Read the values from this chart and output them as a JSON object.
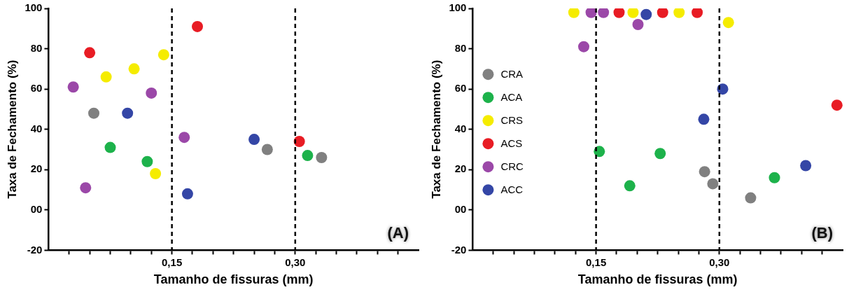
{
  "chart_data": [
    {
      "type": "scatter",
      "xlabel": "Tamanho de fissuras (mm)",
      "ylabel": "Taxa de Fechamento (%)",
      "annotations": [
        "(A)"
      ],
      "xlim": [
        0,
        0.45
      ],
      "ylim": [
        -20,
        100
      ],
      "xticks": [
        {
          "value": 0.025,
          "label": null
        },
        {
          "value": 0.05,
          "label": null
        },
        {
          "value": 0.075,
          "label": null
        },
        {
          "value": 0.1,
          "label": null
        },
        {
          "value": 0.125,
          "label": null
        },
        {
          "value": 0.15,
          "label": "0,15"
        },
        {
          "value": 0.175,
          "label": null
        },
        {
          "value": 0.2,
          "label": null
        },
        {
          "value": 0.225,
          "label": null
        },
        {
          "value": 0.25,
          "label": null
        },
        {
          "value": 0.275,
          "label": null
        },
        {
          "value": 0.3,
          "label": "0,30"
        },
        {
          "value": 0.325,
          "label": null
        },
        {
          "value": 0.35,
          "label": null
        },
        {
          "value": 0.375,
          "label": null
        },
        {
          "value": 0.4,
          "label": null
        },
        {
          "value": 0.425,
          "label": null
        }
      ],
      "yticks": [
        -20,
        {
          "value": 0,
          "label": "00"
        },
        20,
        40,
        60,
        80,
        100
      ],
      "grid": false,
      "legend": false,
      "marker": "circle",
      "ref_lines": [
        {
          "axis": "x",
          "value": 0.15,
          "color": "#000000",
          "line_style": "dashed"
        },
        {
          "axis": "x",
          "value": 0.3,
          "color": "#000000",
          "line_style": "dashed"
        }
      ],
      "series": [
        {
          "color": "#808080",
          "x": [
            0.055,
            0.266,
            0.332
          ],
          "values": [
            48,
            30,
            26
          ]
        },
        {
          "color": "#1db24b",
          "x": [
            0.075,
            0.12,
            0.315
          ],
          "values": [
            31,
            24,
            27
          ]
        },
        {
          "color": "#f5ec00",
          "x": [
            0.07,
            0.104,
            0.14,
            0.13
          ],
          "values": [
            66,
            70,
            77,
            18
          ]
        },
        {
          "color": "#e81c24",
          "x": [
            0.05,
            0.181,
            0.305
          ],
          "values": [
            78,
            91,
            34
          ]
        },
        {
          "color": "#9b48a8",
          "x": [
            0.03,
            0.045,
            0.125,
            0.165
          ],
          "values": [
            61,
            11,
            58,
            36
          ]
        },
        {
          "color": "#3446a6",
          "x": [
            0.096,
            0.169,
            0.25
          ],
          "values": [
            48,
            8,
            35
          ]
        }
      ]
    },
    {
      "type": "scatter",
      "xlabel": "Tamanho de fissuras (mm)",
      "ylabel": "Taxa de Fechamento (%)",
      "annotations": [
        "(B)"
      ],
      "xlim": [
        0,
        0.45
      ],
      "ylim": [
        -20,
        100
      ],
      "xticks": [
        {
          "value": 0.025,
          "label": null
        },
        {
          "value": 0.05,
          "label": null
        },
        {
          "value": 0.075,
          "label": null
        },
        {
          "value": 0.1,
          "label": null
        },
        {
          "value": 0.125,
          "label": null
        },
        {
          "value": 0.15,
          "label": "0,15"
        },
        {
          "value": 0.175,
          "label": null
        },
        {
          "value": 0.2,
          "label": null
        },
        {
          "value": 0.225,
          "label": null
        },
        {
          "value": 0.25,
          "label": null
        },
        {
          "value": 0.275,
          "label": null
        },
        {
          "value": 0.3,
          "label": "0,30"
        },
        {
          "value": 0.325,
          "label": null
        },
        {
          "value": 0.35,
          "label": null
        },
        {
          "value": 0.375,
          "label": null
        },
        {
          "value": 0.4,
          "label": null
        },
        {
          "value": 0.425,
          "label": null
        }
      ],
      "yticks": [
        -20,
        {
          "value": 0,
          "label": "00"
        },
        20,
        40,
        60,
        80,
        100
      ],
      "grid": false,
      "legend": "left",
      "marker": "circle",
      "ref_lines": [
        {
          "axis": "x",
          "value": 0.15,
          "color": "#000000",
          "line_style": "dashed"
        },
        {
          "axis": "x",
          "value": 0.3,
          "color": "#000000",
          "line_style": "dashed"
        }
      ],
      "series": [
        {
          "name": "CRA",
          "color": "#808080",
          "x": [
            0.282,
            0.292,
            0.338
          ],
          "values": [
            19,
            13,
            6
          ]
        },
        {
          "name": "ACA",
          "color": "#1db24b",
          "x": [
            0.154,
            0.228,
            0.191,
            0.367
          ],
          "values": [
            29,
            28,
            12,
            16
          ]
        },
        {
          "name": "CRS",
          "color": "#f5ec00",
          "x": [
            0.123,
            0.195,
            0.251,
            0.311
          ],
          "values": [
            98,
            98,
            98,
            93
          ]
        },
        {
          "name": "ACS",
          "color": "#e81c24",
          "x": [
            0.178,
            0.231,
            0.273,
            0.443
          ],
          "values": [
            98,
            98,
            98,
            52
          ]
        },
        {
          "name": "CRC",
          "color": "#9b48a8",
          "x": [
            0.144,
            0.159,
            0.201,
            0.135
          ],
          "values": [
            98,
            98,
            92,
            81
          ]
        },
        {
          "name": "ACC",
          "color": "#3446a6",
          "x": [
            0.211,
            0.304,
            0.281,
            0.405
          ],
          "values": [
            97,
            60,
            45,
            22
          ]
        }
      ]
    }
  ]
}
